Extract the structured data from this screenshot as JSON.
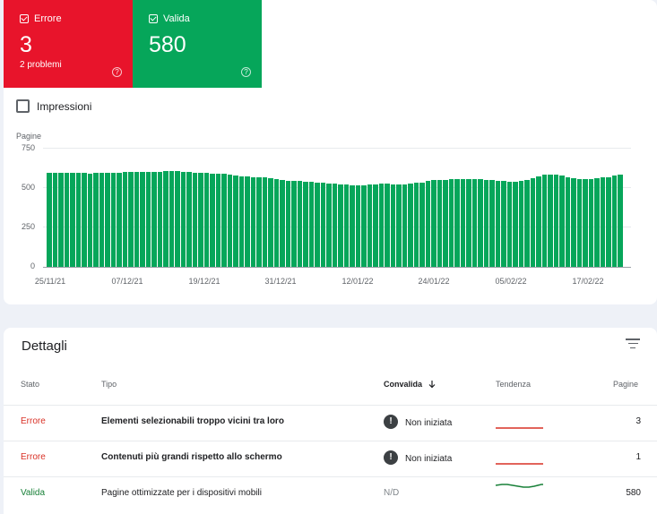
{
  "tiles": {
    "error": {
      "label": "Errore",
      "count": "3",
      "sub": "2 problemi",
      "help": "?"
    },
    "valid": {
      "label": "Valida",
      "count": "580",
      "sub": "",
      "help": "?"
    }
  },
  "impressions": {
    "label": "Impressioni",
    "checked": false
  },
  "chart_data": {
    "type": "bar",
    "ylabel": "Pagine",
    "yticks": [
      "750",
      "500",
      "250",
      "0"
    ],
    "ylim": [
      0,
      750
    ],
    "x_tick_labels": [
      "25/11/21",
      "07/12/21",
      "19/12/21",
      "31/12/21",
      "12/01/22",
      "24/01/22",
      "05/02/22",
      "17/02/22"
    ],
    "color": "#06a65a",
    "x_range": [
      "25/11/21",
      "24/02/22"
    ],
    "values": [
      590,
      590,
      592,
      594,
      592,
      590,
      590,
      588,
      590,
      592,
      592,
      594,
      594,
      596,
      596,
      598,
      598,
      598,
      600,
      600,
      604,
      604,
      602,
      600,
      598,
      594,
      590,
      590,
      588,
      586,
      584,
      580,
      576,
      572,
      568,
      566,
      566,
      565,
      560,
      555,
      548,
      542,
      540,
      540,
      538,
      535,
      532,
      530,
      526,
      522,
      518,
      516,
      515,
      514,
      515,
      518,
      520,
      522,
      522,
      520,
      518,
      518,
      522,
      528,
      532,
      540,
      545,
      548,
      548,
      550,
      552,
      552,
      552,
      552,
      550,
      548,
      545,
      542,
      540,
      538,
      538,
      540,
      545,
      558,
      572,
      580,
      582,
      580,
      575,
      565,
      558,
      555,
      555,
      555,
      558,
      562,
      566,
      575,
      580
    ]
  },
  "details": {
    "title": "Dettagli",
    "headers": {
      "stato": "Stato",
      "tipo": "Tipo",
      "convalida": "Convalida",
      "tendenza": "Tendenza",
      "pagine": "Pagine"
    },
    "sort_icon": "arrow-down-icon",
    "rows": [
      {
        "stato": "Errore",
        "tipo": "Elementi selezionabili troppo vicini tra loro",
        "convalida": "Non iniziata",
        "pagine": "3",
        "status": "error"
      },
      {
        "stato": "Errore",
        "tipo": "Contenuti più grandi rispetto allo schermo",
        "convalida": "Non iniziata",
        "pagine": "1",
        "status": "error"
      },
      {
        "stato": "Valida",
        "tipo": "Pagine ottimizzate per i dispositivi mobili",
        "convalida": "N/D",
        "pagine": "580",
        "status": "valid"
      }
    ]
  },
  "colors": {
    "error": "#e8142b",
    "valid": "#06a65a",
    "trend_error": "#d93025",
    "trend_valid": "#188038"
  }
}
